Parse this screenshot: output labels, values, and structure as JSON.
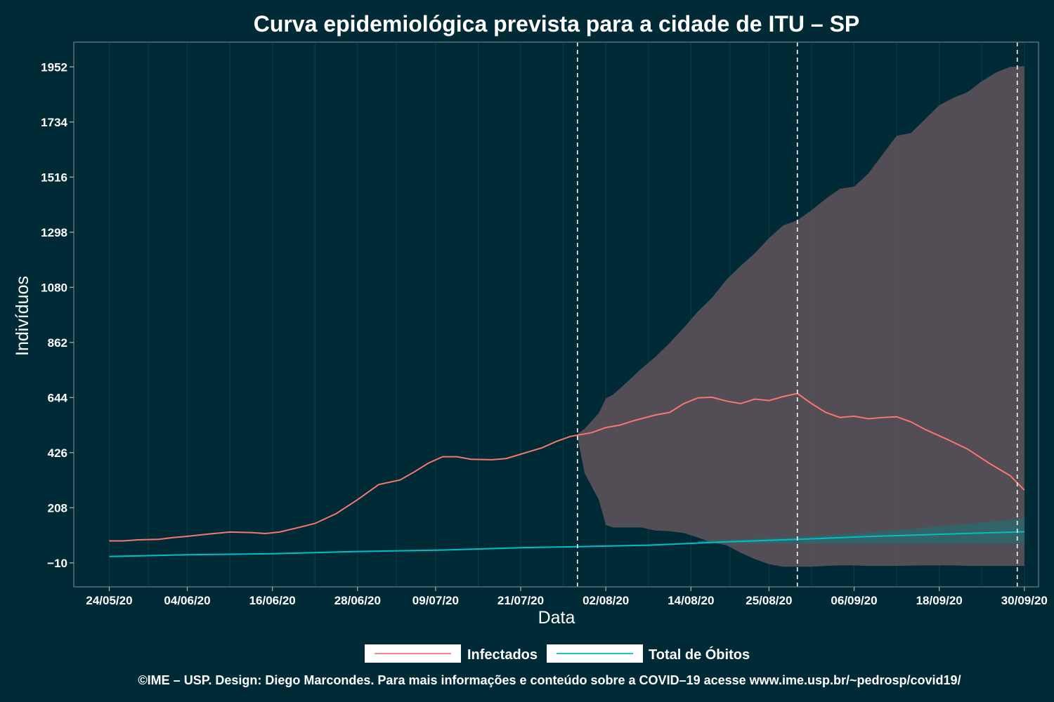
{
  "chart_data": {
    "type": "line",
    "title": "Curva epidemiológica prevista para a cidade de ITU – SP",
    "xlabel": "Data",
    "ylabel": "Indivíduos",
    "x_ticks": [
      "24/05/20",
      "04/06/20",
      "16/06/20",
      "28/06/20",
      "09/07/20",
      "21/07/20",
      "02/08/20",
      "14/08/20",
      "25/08/20",
      "06/09/20",
      "18/09/20",
      "30/09/20"
    ],
    "y_ticks": [
      "−10",
      "208",
      "426",
      "644",
      "862",
      "1080",
      "1298",
      "1516",
      "1734",
      "1952"
    ],
    "ylim": [
      -105,
      2050
    ],
    "x_range": [
      "2020-05-19",
      "2020-10-02"
    ],
    "grid": "vertical",
    "vlines": [
      "2020-07-29",
      "2020-08-29",
      "2020-09-29"
    ],
    "series": [
      {
        "name": "Infectados",
        "color": "#f8766d",
        "points": [
          [
            "2020-05-24",
            77
          ],
          [
            "2020-05-26",
            77
          ],
          [
            "2020-05-28",
            81
          ],
          [
            "2020-05-31",
            83
          ],
          [
            "2020-06-02",
            90
          ],
          [
            "2020-06-04",
            95
          ],
          [
            "2020-06-07",
            104
          ],
          [
            "2020-06-10",
            112
          ],
          [
            "2020-06-13",
            110
          ],
          [
            "2020-06-15",
            106
          ],
          [
            "2020-06-17",
            112
          ],
          [
            "2020-06-20",
            132
          ],
          [
            "2020-06-22",
            146
          ],
          [
            "2020-06-25",
            185
          ],
          [
            "2020-06-28",
            240
          ],
          [
            "2020-07-01",
            300
          ],
          [
            "2020-07-04",
            318
          ],
          [
            "2020-07-06",
            350
          ],
          [
            "2020-07-08",
            385
          ],
          [
            "2020-07-10",
            410
          ],
          [
            "2020-07-12",
            410
          ],
          [
            "2020-07-14",
            400
          ],
          [
            "2020-07-17",
            398
          ],
          [
            "2020-07-19",
            403
          ],
          [
            "2020-07-21",
            420
          ],
          [
            "2020-07-24",
            445
          ],
          [
            "2020-07-26",
            470
          ],
          [
            "2020-07-28",
            490
          ],
          [
            "2020-07-31",
            505
          ],
          [
            "2020-08-02",
            525
          ],
          [
            "2020-08-04",
            535
          ],
          [
            "2020-08-06",
            553
          ],
          [
            "2020-08-09",
            575
          ],
          [
            "2020-08-11",
            585
          ],
          [
            "2020-08-13",
            620
          ],
          [
            "2020-08-15",
            643
          ],
          [
            "2020-08-17",
            645
          ],
          [
            "2020-08-19",
            630
          ],
          [
            "2020-08-21",
            620
          ],
          [
            "2020-08-23",
            638
          ],
          [
            "2020-08-25",
            632
          ],
          [
            "2020-08-27",
            648
          ],
          [
            "2020-08-29",
            660
          ],
          [
            "2020-08-31",
            620
          ],
          [
            "2020-09-02",
            585
          ],
          [
            "2020-09-04",
            565
          ],
          [
            "2020-09-06",
            570
          ],
          [
            "2020-09-08",
            560
          ],
          [
            "2020-09-10",
            565
          ],
          [
            "2020-09-12",
            568
          ],
          [
            "2020-09-14",
            548
          ],
          [
            "2020-09-16",
            518
          ],
          [
            "2020-09-19",
            480
          ],
          [
            "2020-09-22",
            440
          ],
          [
            "2020-09-25",
            385
          ],
          [
            "2020-09-28",
            335
          ],
          [
            "2020-09-30",
            278
          ]
        ]
      },
      {
        "name": "Total de Óbitos",
        "color": "#00bfc4",
        "points": [
          [
            "2020-05-24",
            15
          ],
          [
            "2020-06-04",
            22
          ],
          [
            "2020-06-16",
            26
          ],
          [
            "2020-06-28",
            35
          ],
          [
            "2020-07-09",
            40
          ],
          [
            "2020-07-21",
            50
          ],
          [
            "2020-07-29",
            54
          ],
          [
            "2020-08-08",
            60
          ],
          [
            "2020-08-18",
            72
          ],
          [
            "2020-08-29",
            83
          ],
          [
            "2020-09-08",
            94
          ],
          [
            "2020-09-18",
            103
          ],
          [
            "2020-09-30",
            113
          ]
        ]
      }
    ],
    "bands": [
      {
        "series": "Infectados",
        "color": "#5a5058",
        "points": [
          [
            "2020-07-29",
            490,
            500
          ],
          [
            "2020-07-30",
            345,
            520
          ],
          [
            "2020-08-01",
            240,
            582
          ],
          [
            "2020-08-02",
            140,
            640
          ],
          [
            "2020-08-03",
            130,
            655
          ],
          [
            "2020-08-05",
            130,
            705
          ],
          [
            "2020-08-07",
            130,
            758
          ],
          [
            "2020-08-09",
            118,
            805
          ],
          [
            "2020-08-11",
            115,
            860
          ],
          [
            "2020-08-13",
            108,
            920
          ],
          [
            "2020-08-15",
            90,
            985
          ],
          [
            "2020-08-17",
            70,
            1040
          ],
          [
            "2020-08-19",
            60,
            1110
          ],
          [
            "2020-08-21",
            30,
            1165
          ],
          [
            "2020-08-23",
            5,
            1215
          ],
          [
            "2020-08-25",
            -15,
            1275
          ],
          [
            "2020-08-27",
            -25,
            1325
          ],
          [
            "2020-08-29",
            -25,
            1345
          ],
          [
            "2020-08-31",
            -25,
            1385
          ],
          [
            "2020-09-02",
            -22,
            1430
          ],
          [
            "2020-09-04",
            -20,
            1470
          ],
          [
            "2020-09-06",
            -20,
            1478
          ],
          [
            "2020-09-08",
            -22,
            1530
          ],
          [
            "2020-09-10",
            -22,
            1605
          ],
          [
            "2020-09-12",
            -22,
            1680
          ],
          [
            "2020-09-14",
            -21,
            1690
          ],
          [
            "2020-09-16",
            -20,
            1745
          ],
          [
            "2020-09-18",
            -20,
            1800
          ],
          [
            "2020-09-20",
            -20,
            1830
          ],
          [
            "2020-09-22",
            -22,
            1852
          ],
          [
            "2020-09-24",
            -22,
            1895
          ],
          [
            "2020-09-26",
            -22,
            1930
          ],
          [
            "2020-09-28",
            -22,
            1952
          ],
          [
            "2020-09-30",
            -22,
            1955
          ]
        ]
      },
      {
        "series": "Total de Óbitos",
        "color": "#2a6a70",
        "points": [
          [
            "2020-08-15",
            70,
            76
          ],
          [
            "2020-08-29",
            66,
            92
          ],
          [
            "2020-09-08",
            66,
            110
          ],
          [
            "2020-09-18",
            66,
            135
          ],
          [
            "2020-09-30",
            66,
            165
          ]
        ]
      }
    ],
    "legend_position": "bottom",
    "caption": "©IME – USP. Design: Diego Marcondes. Para mais informações e conteúdo sobre a COVID–19 acesse www.ime.usp.br/~pedrosp/covid19/"
  }
}
